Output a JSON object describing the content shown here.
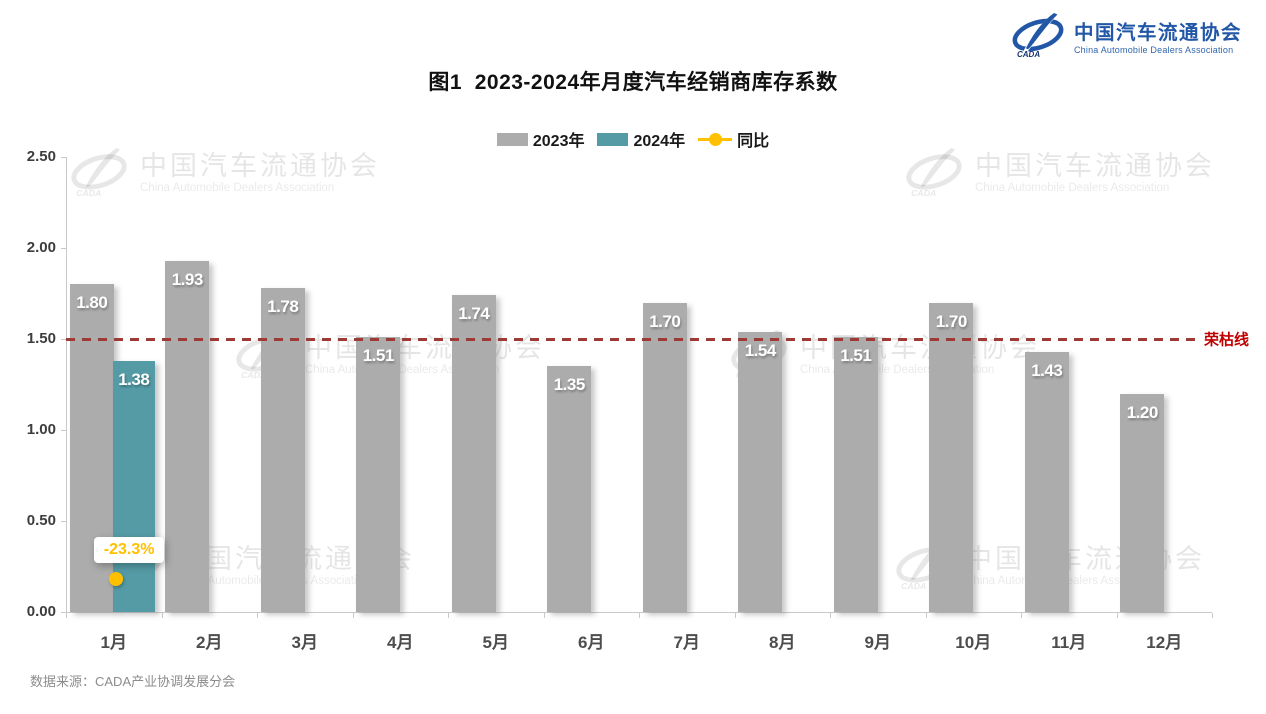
{
  "header": {
    "title": "图1  2023-2024年月度汽车经销商库存系数",
    "logo": {
      "org_cn": "中国汽车流通协会",
      "org_en": "China Automobile Dealers Association",
      "mark": "cada-swoosh-icon",
      "brand_color": "#2157A6"
    }
  },
  "legend": [
    {
      "label": "2023年",
      "color": "#ACACAC",
      "type": "bar"
    },
    {
      "label": "2024年",
      "color": "#549BA6",
      "type": "bar"
    },
    {
      "label": "同比",
      "color": "#FFC000",
      "type": "point"
    }
  ],
  "chart_data": {
    "type": "bar",
    "title": "图1  2023-2024年月度汽车经销商库存系数",
    "categories": [
      "1月",
      "2月",
      "3月",
      "4月",
      "5月",
      "6月",
      "7月",
      "8月",
      "9月",
      "10月",
      "11月",
      "12月"
    ],
    "series": [
      {
        "name": "2023年",
        "color": "#ACACAC",
        "values": [
          1.8,
          1.93,
          1.78,
          1.51,
          1.74,
          1.35,
          1.7,
          1.54,
          1.51,
          1.7,
          1.43,
          1.2
        ]
      },
      {
        "name": "2024年",
        "color": "#549BA6",
        "values": [
          1.38,
          null,
          null,
          null,
          null,
          null,
          null,
          null,
          null,
          null,
          null,
          null
        ]
      }
    ],
    "yoy_point": {
      "name": "同比",
      "month_index": 0,
      "value_pct": -23.3,
      "label": "-23.3%",
      "color": "#FFC000"
    },
    "reference_line": {
      "value": 1.5,
      "label": "荣枯线",
      "style": "dashed",
      "line_color": "#9C3A38",
      "label_color": "#C00000"
    },
    "ylim": [
      0,
      2.5
    ],
    "y_ticks": [
      "0.00",
      "0.50",
      "1.00",
      "1.50",
      "2.00",
      "2.50"
    ],
    "value_label_decimals": 2,
    "grid": false,
    "legend_position": "top"
  },
  "watermark": {
    "org_cn": "中国汽车流通协会",
    "org_en": "China Automobile Dealers Association"
  },
  "footer": {
    "source": "数据来源：CADA产业协调发展分会"
  }
}
